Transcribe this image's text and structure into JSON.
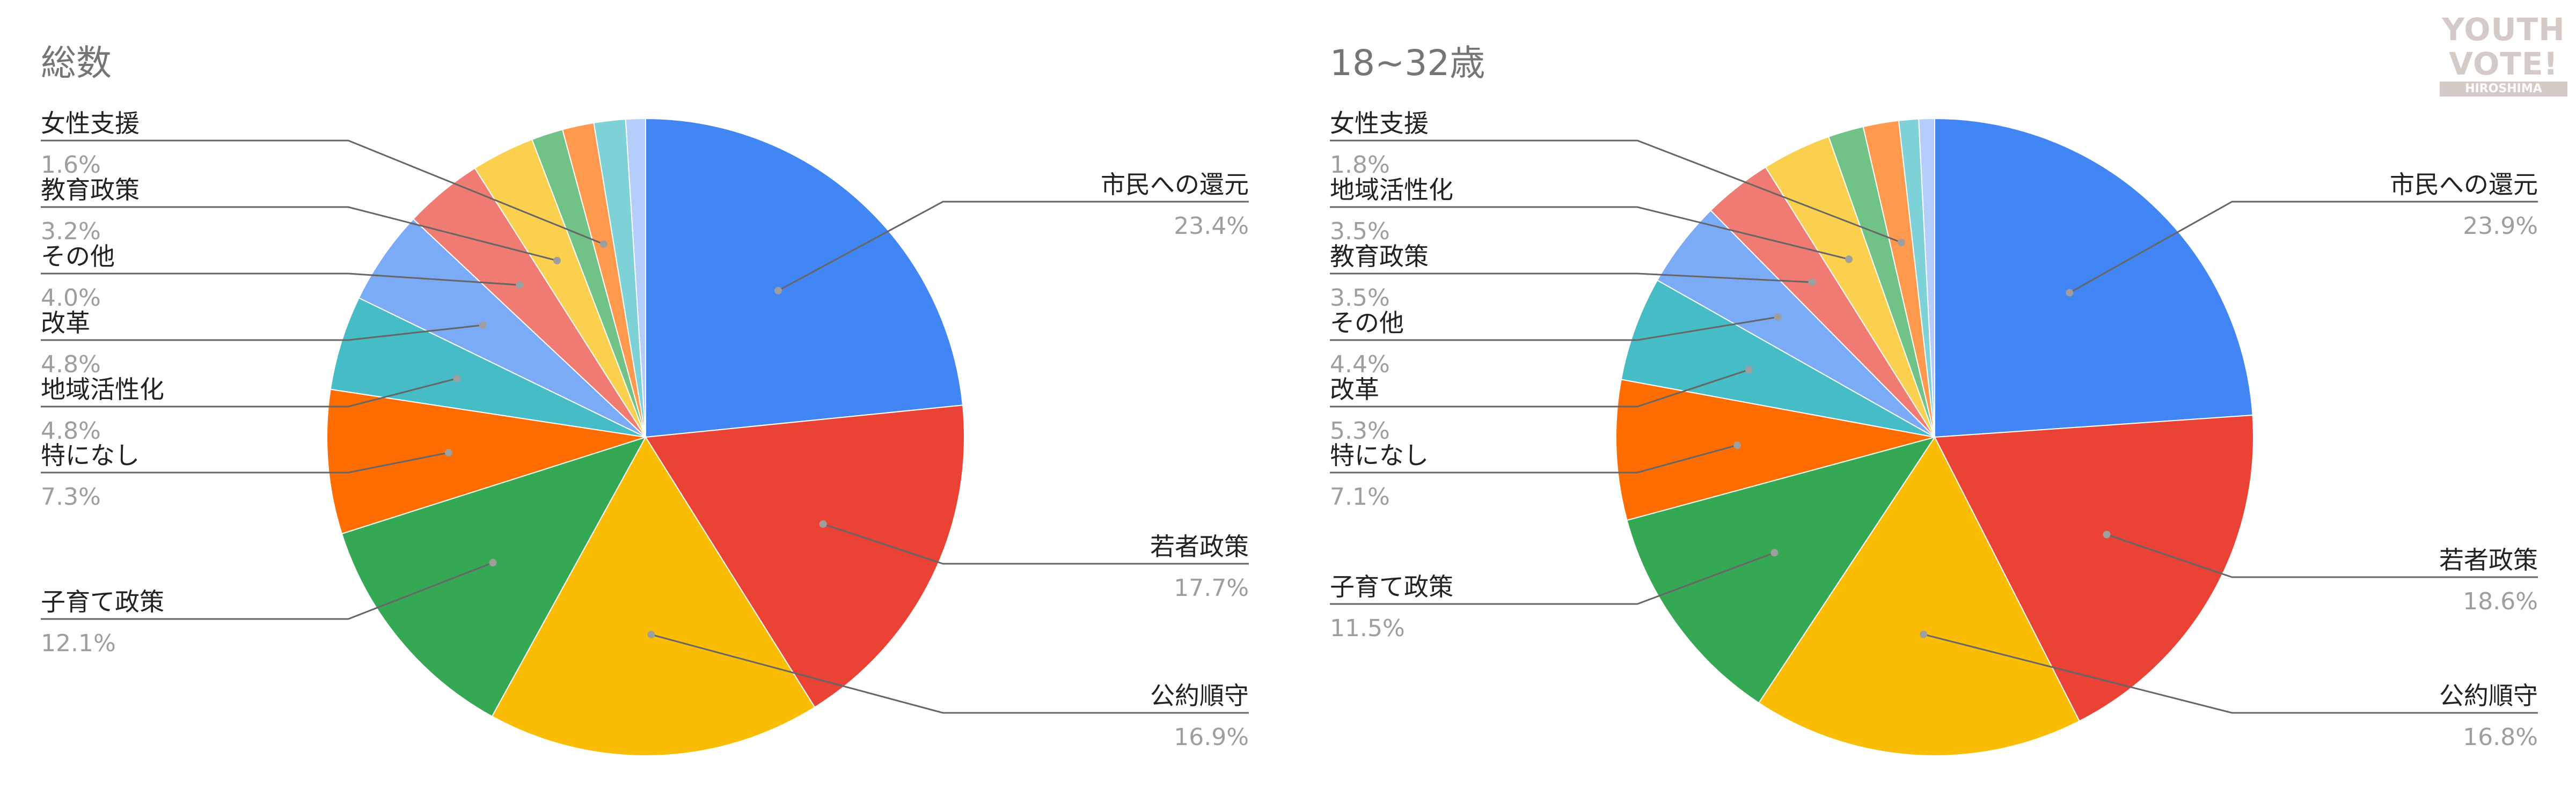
{
  "colors": {
    "palette": [
      "#4285F4",
      "#EA4335",
      "#FBBC04",
      "#34A853",
      "#FF6D01",
      "#46BDC6",
      "#7BAAF7",
      "#F07B72",
      "#FCD04F",
      "#71C287",
      "#FF994D",
      "#7ED1D7",
      "#B3CEFB"
    ],
    "label_text": "#222222",
    "percent_text": "#9e9e9e",
    "title_text": "#757575"
  },
  "logo": {
    "line1": "YOUTH",
    "line2": "VOTE!",
    "sub": "HIROSHIMA",
    "color": "#d5cbc6"
  },
  "chart_data": [
    {
      "type": "pie",
      "title": "総数",
      "slices": [
        {
          "label": "市民への還元",
          "value": 23.4,
          "value_label": "23.4%",
          "show_label": true
        },
        {
          "label": "若者政策",
          "value": 17.7,
          "value_label": "17.7%",
          "show_label": true
        },
        {
          "label": "公約順守",
          "value": 16.9,
          "value_label": "16.9%",
          "show_label": true
        },
        {
          "label": "子育て政策",
          "value": 12.1,
          "value_label": "12.1%",
          "show_label": true
        },
        {
          "label": "特になし",
          "value": 7.3,
          "value_label": "7.3%",
          "show_label": true
        },
        {
          "label": "地域活性化",
          "value": 4.8,
          "value_label": "4.8%",
          "show_label": true
        },
        {
          "label": "改革",
          "value": 4.8,
          "value_label": "4.8%",
          "show_label": true
        },
        {
          "label": "その他",
          "value": 4.0,
          "value_label": "4.0%",
          "show_label": true
        },
        {
          "label": "教育政策",
          "value": 3.2,
          "value_label": "3.2%",
          "show_label": true
        },
        {
          "label": "",
          "value": 1.6,
          "value_label": "",
          "show_label": false
        },
        {
          "label": "女性支援",
          "value": 1.6,
          "value_label": "1.6%",
          "show_label": true
        },
        {
          "label": "",
          "value": 1.6,
          "value_label": "",
          "show_label": false
        },
        {
          "label": "",
          "value": 1.0,
          "value_label": "",
          "show_label": false
        }
      ]
    },
    {
      "type": "pie",
      "title": "18~32歳",
      "slices": [
        {
          "label": "市民への還元",
          "value": 23.9,
          "value_label": "23.9%",
          "show_label": true
        },
        {
          "label": "若者政策",
          "value": 18.6,
          "value_label": "18.6%",
          "show_label": true
        },
        {
          "label": "公約順守",
          "value": 16.8,
          "value_label": "16.8%",
          "show_label": true
        },
        {
          "label": "子育て政策",
          "value": 11.5,
          "value_label": "11.5%",
          "show_label": true
        },
        {
          "label": "特になし",
          "value": 7.1,
          "value_label": "7.1%",
          "show_label": true
        },
        {
          "label": "改革",
          "value": 5.3,
          "value_label": "5.3%",
          "show_label": true
        },
        {
          "label": "その他",
          "value": 4.4,
          "value_label": "4.4%",
          "show_label": true
        },
        {
          "label": "教育政策",
          "value": 3.5,
          "value_label": "3.5%",
          "show_label": true
        },
        {
          "label": "地域活性化",
          "value": 3.5,
          "value_label": "3.5%",
          "show_label": true
        },
        {
          "label": "",
          "value": 1.8,
          "value_label": "",
          "show_label": false
        },
        {
          "label": "女性支援",
          "value": 1.8,
          "value_label": "1.8%",
          "show_label": true
        },
        {
          "label": "",
          "value": 1.0,
          "value_label": "",
          "show_label": false
        },
        {
          "label": "",
          "value": 0.8,
          "value_label": "",
          "show_label": false
        }
      ]
    }
  ]
}
